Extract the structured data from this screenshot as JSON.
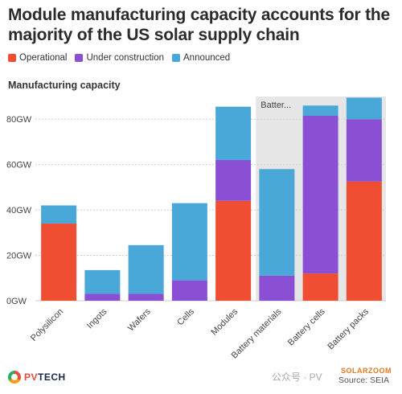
{
  "header": {
    "title": "Module manufacturing capacity accounts for the majority of the US solar supply chain"
  },
  "legend": [
    {
      "label": "Operational",
      "color": "#f04e32"
    },
    {
      "label": "Under construction",
      "color": "#8a4fd3"
    },
    {
      "label": "Announced",
      "color": "#4aa8d8"
    }
  ],
  "chart_label": "Manufacturing capacity",
  "chart_data": {
    "type": "bar",
    "stacked": true,
    "categories": [
      "Polysilicon",
      "Ingots",
      "Wafers",
      "Cells",
      "Modules",
      "Battery materials",
      "Battery cells",
      "Battery packs"
    ],
    "series": [
      {
        "name": "Operational",
        "color": "#f04e32",
        "values": [
          34,
          0,
          0,
          0,
          44,
          0,
          12,
          52.5
        ]
      },
      {
        "name": "Under construction",
        "color": "#8a4fd3",
        "values": [
          0,
          3,
          3,
          9,
          18,
          11,
          69.5,
          27.5
        ]
      },
      {
        "name": "Announced",
        "color": "#4aa8d8",
        "values": [
          8,
          10.5,
          21.5,
          34,
          23.5,
          47,
          4.5,
          9.5
        ]
      }
    ],
    "yticks": [
      "0GW",
      "20GW",
      "40GW",
      "60GW",
      "80GW"
    ],
    "ylim": [
      0,
      90
    ],
    "annotation": "Batter...",
    "shaded_categories": [
      "Battery materials",
      "Battery cells",
      "Battery packs"
    ]
  },
  "footer": {
    "logo_p": "PV",
    "logo_t": "TECH",
    "watermark": "公众号 · PV",
    "watermark_brand": "SOLARZOOM",
    "source": "Source: SEIA"
  }
}
